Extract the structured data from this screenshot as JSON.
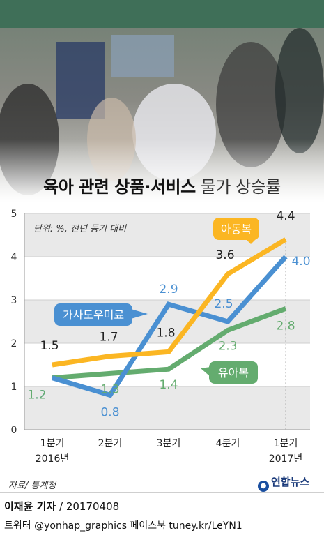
{
  "title_bold": "육아 관련 상품·서비스",
  "title_light": "물가 상승률",
  "unit_note": "단위: %, 전년 동기 대비",
  "source": "자료/ 통계청",
  "logo": "연합뉴스",
  "author_name": "이재윤 기자",
  "author_date": " / 20170408",
  "social": "트위터 @yonhap_graphics  페이스북 tuney.kr/LeYN1",
  "colors": {
    "orange": "#fbb623",
    "blue": "#4a90d2",
    "green": "#64ac6f",
    "bandLight": "#ffffff",
    "bandGray": "#e9e9e9"
  },
  "chart_data": {
    "type": "line",
    "categories": [
      [
        "1분기",
        "2016년"
      ],
      [
        "2분기",
        ""
      ],
      [
        "3분기",
        ""
      ],
      [
        "4분기",
        ""
      ],
      [
        "1분기",
        "2017년"
      ]
    ],
    "ylim": [
      0,
      5
    ],
    "yticks": [
      0,
      1,
      2,
      3,
      4,
      5
    ],
    "series": [
      {
        "name": "아동복",
        "color": "#fbb623",
        "values": [
          1.5,
          1.7,
          1.8,
          3.6,
          4.4
        ]
      },
      {
        "name": "가사도우미료",
        "color": "#4a90d2",
        "values": [
          1.2,
          0.8,
          2.9,
          2.5,
          4.0
        ]
      },
      {
        "name": "유아복",
        "color": "#64ac6f",
        "values": [
          1.2,
          1.3,
          1.4,
          2.3,
          2.8
        ]
      }
    ]
  }
}
